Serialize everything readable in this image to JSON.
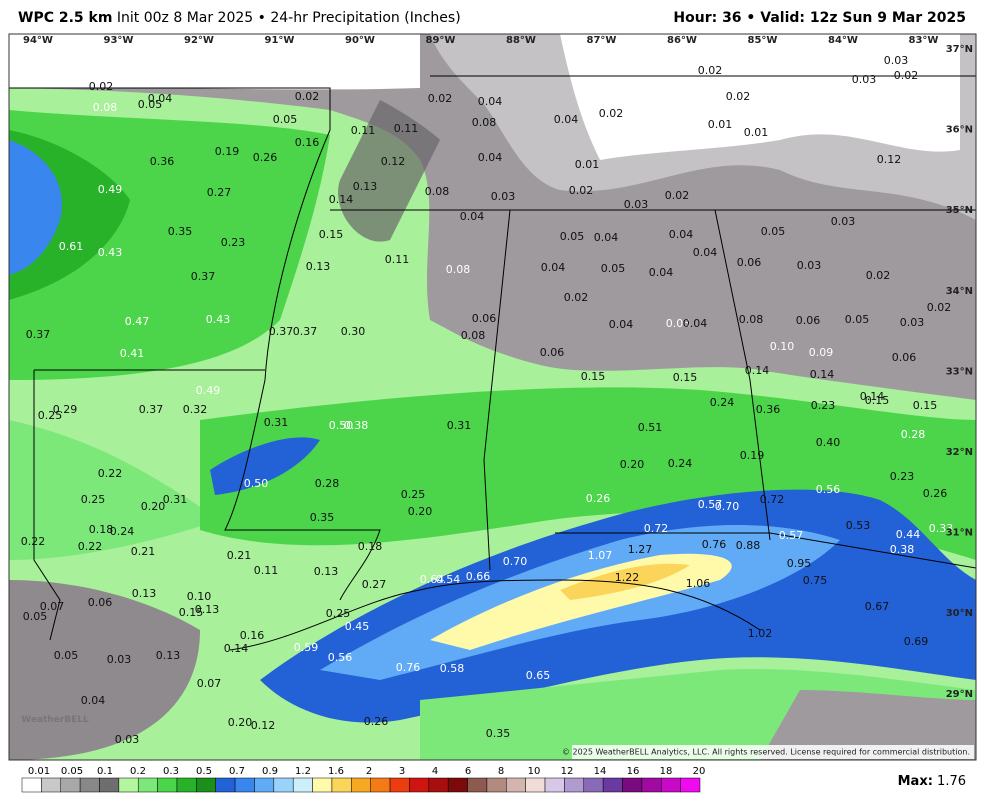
{
  "header": {
    "model": "WPC 2.5 km",
    "info": "Init 00z 8 Mar 2025 • 24-hr Precipitation (Inches)",
    "valid": "Hour: 36 • Valid: 12z Sun 9 Mar 2025"
  },
  "longitudes": [
    "94°W",
    "93°W",
    "92°W",
    "91°W",
    "90°W",
    "89°W",
    "88°W",
    "87°W",
    "86°W",
    "85°W",
    "84°W",
    "83°W"
  ],
  "latitudes": [
    "37°N",
    "36°N",
    "35°N",
    "34°N",
    "33°N",
    "32°N",
    "31°N",
    "30°N",
    "29°N"
  ],
  "logo": "WeatherBELL",
  "copyright": "© 2025 WeatherBELL Analytics, LLC. All rights reserved. License required for commercial distribution.",
  "max": {
    "label": "Max:",
    "value": "1.76"
  },
  "legend": {
    "labels": [
      "0.01",
      "0.05",
      "0.1",
      "0.2",
      "0.3",
      "0.5",
      "0.7",
      "0.9",
      "1.2",
      "1.6",
      "2",
      "3",
      "4",
      "6",
      "8",
      "10",
      "12",
      "14",
      "16",
      "18",
      "20"
    ],
    "colors": [
      "#ffffff",
      "#c8c8c8",
      "#a8a8a8",
      "#888888",
      "#6e6e6e",
      "#b4f5a0",
      "#7de87a",
      "#4cd54a",
      "#27b22a",
      "#1a8f1c",
      "#2361d6",
      "#3a86ef",
      "#61aaf5",
      "#9ad3f9",
      "#cdeffb",
      "#fffaaa",
      "#fbd55a",
      "#f7a823",
      "#f47a16",
      "#ec3d10",
      "#d01510",
      "#a80e0e",
      "#7c0a0a",
      "#8c5a4e",
      "#b28a80",
      "#d4b4ae",
      "#f2dcd8",
      "#d8c8e8",
      "#b09ad0",
      "#8a6ab8",
      "#6a3aa0",
      "#7a0a80",
      "#a00aa0",
      "#c80ac8",
      "#f00af0"
    ]
  },
  "map_labels": [
    "0.02",
    "0.08",
    "0.05",
    "0.04",
    "0.02",
    "0.05",
    "0.16",
    "0.19",
    "0.26",
    "0.36",
    "0.49",
    "0.27",
    "0.35",
    "0.23",
    "0.61",
    "0.43",
    "0.37",
    "0.47",
    "0.43",
    "0.41",
    "0.37",
    "0.37",
    "0.37",
    "0.30",
    "0.49",
    "0.37",
    "0.32",
    "0.29",
    "0.25",
    "0.31",
    "0.50",
    "0.38",
    "0.31",
    "0.22",
    "0.50",
    "0.28",
    "0.25",
    "0.20",
    "0.31",
    "0.35",
    "0.25",
    "0.20",
    "0.18",
    "0.24",
    "0.22",
    "0.22",
    "0.21",
    "0.21",
    "0.18",
    "0.11",
    "0.13",
    "0.27",
    "0.13",
    "0.10",
    "0.13",
    "0.15",
    "0.07",
    "0.05",
    "0.06",
    "0.25",
    "0.45",
    "0.16",
    "0.14",
    "0.59",
    "0.56",
    "0.13",
    "0.05",
    "0.03",
    "0.07",
    "0.76",
    "0.58",
    "0.65",
    "0.04",
    "0.20",
    "0.12",
    "0.26",
    "0.35",
    "0.03",
    "0.11",
    "0.11",
    "0.12",
    "0.13",
    "0.14",
    "0.15",
    "0.13",
    "0.11",
    "0.08",
    "0.02",
    "0.04",
    "0.08",
    "0.04",
    "0.02",
    "0.04",
    "0.08",
    "0.03",
    "0.01",
    "0.02",
    "0.04",
    "0.03",
    "0.02",
    "0.05",
    "0.04",
    "0.04",
    "0.04",
    "0.06",
    "0.05",
    "0.03",
    "0.03",
    "0.02",
    "0.03",
    "0.02",
    "0.04",
    "0.05",
    "0.04",
    "0.02",
    "0.06",
    "0.08",
    "0.04",
    "0.03",
    "0.04",
    "0.08",
    "0.06",
    "0.05",
    "0.06",
    "0.10",
    "0.09",
    "0.06",
    "0.15",
    "0.15",
    "0.14",
    "0.14",
    "0.14",
    "0.15",
    "0.15",
    "0.24",
    "0.36",
    "0.23",
    "0.28",
    "0.51",
    "0.40",
    "0.19",
    "0.20",
    "0.24",
    "0.23",
    "0.26",
    "0.57",
    "0.70",
    "0.72",
    "0.56",
    "0.26",
    "0.53",
    "0.44",
    "0.33",
    "0.38",
    "0.72",
    "0.76",
    "0.88",
    "0.57",
    "1.07",
    "1.27",
    "0.95",
    "0.75",
    "0.70",
    "0.66",
    "0.64",
    "0.54",
    "1.22",
    "1.06",
    "0.67",
    "1.02",
    "0.69",
    "0.02",
    "0.03",
    "0.03",
    "0.02",
    "0.02",
    "0.01",
    "0.01",
    "0.12"
  ]
}
